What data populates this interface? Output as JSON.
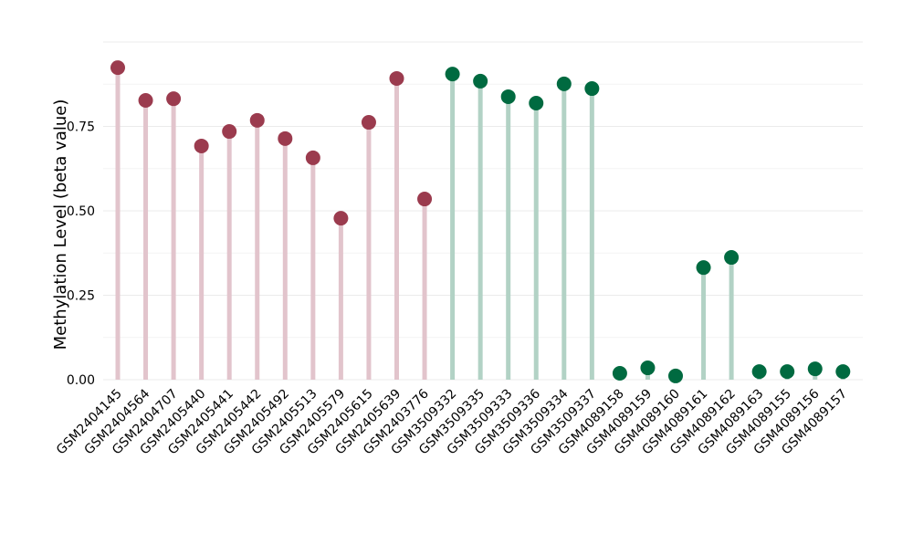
{
  "chart_data": {
    "type": "lollipop",
    "title": "",
    "xlabel": "",
    "ylabel": "Methylation Level (beta value)",
    "ylim": [
      0,
      1.0
    ],
    "yticks": [
      "0.00",
      "0.25",
      "0.50",
      "0.75"
    ],
    "ytick_values": [
      0,
      0.25,
      0.5,
      0.75
    ],
    "grid": true,
    "categories": [
      "GSM2404145",
      "GSM2404564",
      "GSM2404707",
      "GSM2405440",
      "GSM2405441",
      "GSM2405442",
      "GSM2405492",
      "GSM2405513",
      "GSM2405579",
      "GSM2405615",
      "GSM2405639",
      "GSM2403776",
      "GSM3509332",
      "GSM3509335",
      "GSM3509333",
      "GSM3509336",
      "GSM3509334",
      "GSM3509337",
      "GSM4089158",
      "GSM4089159",
      "GSM4089160",
      "GSM4089161",
      "GSM4089162",
      "GSM4089163",
      "GSM4089155",
      "GSM4089156",
      "GSM4089157"
    ],
    "values": [
      0.924,
      0.827,
      0.832,
      0.692,
      0.735,
      0.768,
      0.714,
      0.657,
      0.478,
      0.762,
      0.892,
      0.535,
      0.905,
      0.884,
      0.838,
      0.819,
      0.876,
      0.862,
      0.019,
      0.035,
      0.011,
      0.332,
      0.362,
      0.024,
      0.024,
      0.032,
      0.024
    ],
    "groups": [
      "a",
      "a",
      "a",
      "a",
      "a",
      "a",
      "a",
      "a",
      "a",
      "a",
      "a",
      "a",
      "b",
      "b",
      "b",
      "b",
      "b",
      "b",
      "b",
      "b",
      "b",
      "b",
      "b",
      "b",
      "b",
      "b",
      "b"
    ],
    "colors": {
      "a": {
        "dot": "#9b3b4e",
        "stem": "#e2c4cc"
      },
      "b": {
        "dot": "#006a40",
        "stem": "#b2d2c5"
      }
    }
  }
}
